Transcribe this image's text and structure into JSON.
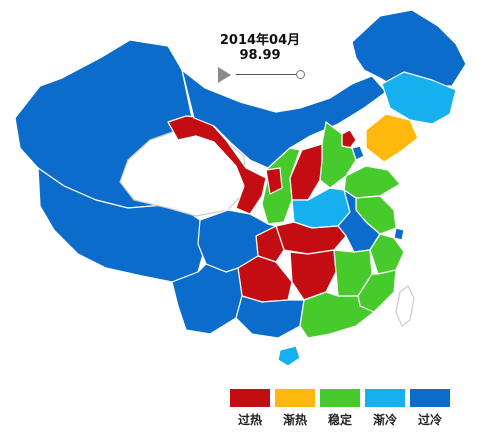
{
  "header": {
    "date": "2014年04月",
    "value": "98.99"
  },
  "colors": {
    "overheated": "#c40d13",
    "warming": "#ffb80b",
    "stable": "#47ca2c",
    "cooling": "#16b0ee",
    "overcooled": "#0c6ccc",
    "no_data": "#ffffff",
    "border": "#ffffff"
  },
  "legend": [
    {
      "key": "overheated",
      "label": "过热",
      "color": "#c40d13"
    },
    {
      "key": "warming",
      "label": "渐热",
      "color": "#ffb80b"
    },
    {
      "key": "stable",
      "label": "稳定",
      "color": "#47ca2c"
    },
    {
      "key": "cooling",
      "label": "渐冷",
      "color": "#16b0ee"
    },
    {
      "key": "overcooled",
      "label": "过冷",
      "color": "#0c6ccc"
    }
  ],
  "map": {
    "type": "choropleth",
    "region_status": {
      "xinjiang": "overcooled",
      "tibet": "overcooled",
      "qinghai": "no_data",
      "gansu": "overheated",
      "inner_mongolia": "overcooled",
      "heilongjiang": "overcooled",
      "jilin": "cooling",
      "liaoning": "warming",
      "hebei": "stable",
      "beijing": "overheated",
      "tianjin": "overcooled",
      "shanxi": "overheated",
      "shaanxi": "stable",
      "ningxia": "overheated",
      "shandong": "stable",
      "henan": "cooling",
      "jiangsu": "stable",
      "anhui": "overcooled",
      "shanghai": "overcooled",
      "zhejiang": "stable",
      "hubei": "overheated",
      "sichuan": "overcooled",
      "chongqing": "overheated",
      "hunan": "overheated",
      "guizhou": "overheated",
      "jiangxi": "stable",
      "fujian": "stable",
      "yunnan": "overcooled",
      "guangxi": "overcooled",
      "guangdong": "stable",
      "hainan": "cooling",
      "taiwan": "no_data"
    }
  }
}
